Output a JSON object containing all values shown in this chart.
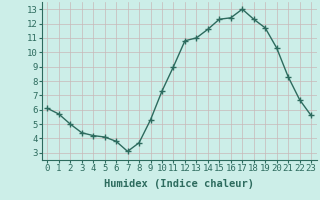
{
  "x": [
    0,
    1,
    2,
    3,
    4,
    5,
    6,
    7,
    8,
    9,
    10,
    11,
    12,
    13,
    14,
    15,
    16,
    17,
    18,
    19,
    20,
    21,
    22,
    23
  ],
  "y": [
    6.1,
    5.7,
    5.0,
    4.4,
    4.2,
    4.1,
    3.8,
    3.1,
    3.7,
    5.3,
    7.3,
    9.0,
    10.8,
    11.0,
    11.6,
    12.3,
    12.4,
    13.0,
    12.3,
    11.7,
    10.3,
    8.3,
    6.7,
    5.6
  ],
  "line_color": "#2d6b5e",
  "marker": "+",
  "marker_size": 4,
  "bg_color": "#cceee8",
  "grid_color": "#c8b8b8",
  "axis_color": "#2d6b5e",
  "xlabel": "Humidex (Indice chaleur)",
  "xlim": [
    -0.5,
    23.5
  ],
  "ylim": [
    2.5,
    13.5
  ],
  "yticks": [
    3,
    4,
    5,
    6,
    7,
    8,
    9,
    10,
    11,
    12,
    13
  ],
  "xticks": [
    0,
    1,
    2,
    3,
    4,
    5,
    6,
    7,
    8,
    9,
    10,
    11,
    12,
    13,
    14,
    15,
    16,
    17,
    18,
    19,
    20,
    21,
    22,
    23
  ],
  "tick_fontsize": 6.5,
  "xlabel_fontsize": 7.5,
  "line_width": 1.0,
  "marker_edge_width": 1.0
}
